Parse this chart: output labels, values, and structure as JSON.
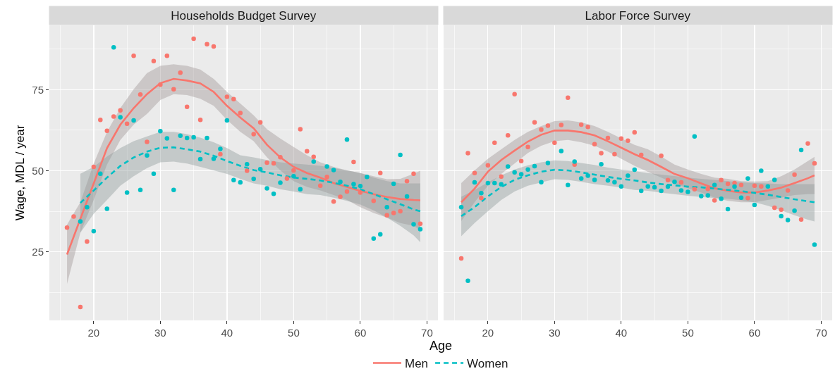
{
  "chart_data": [
    {
      "type": "scatter",
      "title": "Households Budget Survey",
      "xlabel": "Age",
      "ylabel": "Wage, MDL / year",
      "xlim": [
        13.35,
        71.65
      ],
      "ylim": [
        3.9,
        94.8
      ],
      "xticks": [
        20,
        30,
        40,
        50,
        60,
        70
      ],
      "yticks": [
        25,
        50,
        75
      ],
      "grid": true,
      "legend": "bottom",
      "series": [
        {
          "color": "#f8766d",
          "marker": "circle",
          "x": [
            16,
            17,
            18,
            19,
            20,
            21,
            22,
            23,
            24,
            25,
            26,
            27,
            28,
            29,
            30,
            31,
            32,
            33,
            34,
            35,
            36,
            37,
            38,
            39,
            40,
            41,
            42,
            43,
            44,
            45,
            46,
            47,
            48,
            49,
            50,
            51,
            52,
            53,
            54,
            55,
            56,
            57,
            58,
            59,
            60,
            62,
            63,
            64,
            65,
            66,
            67,
            68,
            69
          ],
          "values": [
            32.5,
            35.9,
            8.0,
            28.2,
            51.2,
            65.7,
            62.3,
            66.7,
            68.6,
            64.5,
            85.4,
            73.5,
            58.9,
            83.8,
            76.5,
            85.4,
            75.1,
            80.2,
            69.7,
            90.7,
            65.7,
            89.0,
            88.3,
            55.1,
            72.8,
            72.1,
            67.8,
            50.0,
            61.3,
            64.9,
            52.5,
            52.3,
            54.2,
            47.6,
            50.1,
            62.8,
            56.0,
            54.3,
            45.4,
            48.1,
            40.5,
            42.0,
            43.6,
            52.7,
            43.3,
            40.7,
            49.3,
            36.3,
            37.0,
            37.5,
            46.8,
            49.1,
            33.7
          ]
        },
        {
          "color": "#00bfc4",
          "marker": "circle",
          "x": [
            18,
            19,
            20,
            21,
            22,
            23,
            24,
            25,
            26,
            27,
            28,
            29,
            30,
            31,
            32,
            33,
            34,
            35,
            36,
            37,
            38,
            39,
            40,
            41,
            42,
            43,
            44,
            45,
            46,
            47,
            48,
            50,
            51,
            53,
            55,
            56,
            57,
            58,
            59,
            60,
            61,
            62,
            63,
            64,
            65,
            66,
            67,
            68,
            69
          ],
          "values": [
            34.4,
            38.8,
            31.4,
            49.1,
            38.3,
            88.0,
            66.5,
            43.3,
            65.5,
            44.1,
            54.7,
            49.1,
            62.2,
            60.0,
            44.1,
            60.8,
            60.1,
            60.3,
            53.6,
            60.1,
            53.7,
            56.7,
            65.5,
            47.1,
            46.4,
            52.0,
            47.5,
            50.5,
            44.6,
            42.9,
            46.3,
            48.3,
            44.3,
            52.8,
            51.3,
            50.2,
            46.6,
            59.6,
            45.9,
            45.3,
            48.1,
            29.1,
            30.4,
            38.8,
            46.0,
            54.9,
            42.1,
            33.5,
            32.0
          ]
        },
        {
          "type": "line",
          "name": "Men",
          "color": "#f8766d",
          "line_style": "solid",
          "marker": "none",
          "x": [
            16,
            18,
            20,
            22,
            24,
            26,
            28,
            30,
            32,
            34,
            36,
            38,
            40,
            42,
            44,
            46,
            48,
            50,
            52,
            54,
            56,
            58,
            60,
            62,
            64,
            66,
            68,
            69
          ],
          "values": [
            24.2,
            35.2,
            46.1,
            57.0,
            64.2,
            69.3,
            73.6,
            77.0,
            78.3,
            77.8,
            76.9,
            74.3,
            70.0,
            66.4,
            63.1,
            58.0,
            54.1,
            51.2,
            49.3,
            47.9,
            46.2,
            45.0,
            43.8,
            42.8,
            41.9,
            41.3,
            41.0,
            40.9
          ],
          "lower": [
            15.1,
            30.9,
            41.0,
            51.9,
            59.5,
            64.2,
            67.5,
            71.8,
            73.6,
            73.3,
            72.2,
            70.0,
            65.7,
            62.0,
            59.1,
            54.1,
            50.1,
            46.8,
            45.0,
            43.9,
            42.5,
            41.0,
            38.8,
            37.0,
            35.6,
            33.9,
            33.0,
            31.7
          ],
          "upper": [
            33.4,
            40.3,
            52.2,
            62.0,
            69.3,
            75.1,
            80.1,
            82.3,
            82.8,
            82.3,
            81.2,
            78.3,
            74.3,
            70.7,
            67.1,
            62.8,
            59.9,
            57.3,
            54.8,
            52.6,
            51.2,
            50.1,
            49.3,
            48.3,
            47.4,
            47.5,
            49.1,
            50.0
          ]
        },
        {
          "type": "line",
          "name": "Women",
          "color": "#00bfc4",
          "line_style": "dashed",
          "marker": "none",
          "x": [
            18,
            20,
            22,
            24,
            26,
            28,
            30,
            32,
            34,
            36,
            38,
            40,
            42,
            44,
            46,
            48,
            50,
            52,
            54,
            56,
            58,
            60,
            62,
            64,
            66,
            68,
            69
          ],
          "values": [
            40.1,
            43.9,
            47.9,
            51.5,
            54.1,
            55.9,
            57.1,
            57.2,
            56.6,
            55.9,
            54.6,
            53.0,
            51.5,
            50.2,
            49.5,
            48.6,
            47.9,
            47.5,
            47.0,
            46.3,
            45.4,
            44.3,
            42.8,
            41.2,
            39.7,
            38.1,
            37.5
          ],
          "lower": [
            30.9,
            36.7,
            41.0,
            45.4,
            48.3,
            50.8,
            52.6,
            52.8,
            52.2,
            51.2,
            50.1,
            49.0,
            47.5,
            46.1,
            45.4,
            44.3,
            43.6,
            42.8,
            42.5,
            41.7,
            40.7,
            39.6,
            37.8,
            35.6,
            33.0,
            30.1,
            28.0
          ],
          "upper": [
            49.1,
            51.2,
            54.4,
            57.0,
            59.1,
            60.6,
            62.0,
            62.0,
            61.3,
            60.2,
            58.8,
            57.0,
            54.8,
            54.1,
            53.3,
            52.6,
            52.2,
            51.9,
            51.5,
            50.8,
            50.1,
            49.3,
            47.9,
            46.8,
            46.1,
            46.1,
            46.1
          ]
        }
      ]
    },
    {
      "type": "scatter",
      "title": "Labor Force Survey",
      "xlim": [
        13.35,
        71.65
      ],
      "ylim": [
        3.9,
        94.8
      ],
      "xticks": [
        20,
        30,
        40,
        50,
        60,
        70
      ],
      "yticks": [
        25,
        50,
        75
      ],
      "grid": true,
      "tick_labels": "x",
      "series": [
        {
          "color": "#f8766d",
          "marker": "circle",
          "x": [
            16,
            17,
            18,
            19,
            20,
            21,
            22,
            23,
            24,
            25,
            26,
            27,
            28,
            29,
            30,
            31,
            32,
            33,
            34,
            35,
            36,
            37,
            38,
            39,
            40,
            41,
            42,
            43,
            46,
            47,
            49,
            51,
            53,
            54,
            55,
            56,
            57,
            58,
            59,
            60,
            61,
            63,
            64,
            65,
            66,
            67,
            68,
            69
          ],
          "values": [
            23.0,
            55.4,
            49.3,
            41.6,
            51.7,
            58.6,
            48.2,
            60.9,
            73.6,
            53.0,
            57.3,
            64.9,
            62.7,
            63.9,
            58.6,
            64.1,
            72.5,
            51.9,
            64.2,
            63.5,
            58.2,
            55.4,
            60.1,
            55.1,
            59.9,
            59.3,
            61.8,
            54.9,
            54.6,
            47.1,
            46.4,
            44.3,
            44.4,
            40.9,
            47.1,
            46.0,
            46.2,
            45.6,
            41.6,
            45.4,
            45.2,
            38.6,
            38.0,
            43.9,
            48.8,
            35.0,
            58.4,
            52.3
          ]
        },
        {
          "color": "#00bfc4",
          "marker": "circle",
          "x": [
            16,
            17,
            18,
            19,
            20,
            21,
            22,
            23,
            24,
            25,
            26,
            27,
            28,
            29,
            31,
            32,
            33,
            34,
            35,
            36,
            37,
            38,
            39,
            40,
            41,
            42,
            43,
            44,
            45,
            46,
            47,
            48,
            49,
            50,
            51,
            52,
            53,
            54,
            55,
            56,
            57,
            58,
            59,
            60,
            61,
            62,
            63,
            64,
            65,
            66,
            67,
            69
          ],
          "values": [
            38.8,
            16.1,
            46.4,
            43.1,
            46.2,
            46.2,
            45.8,
            51.3,
            49.5,
            48.9,
            50.4,
            51.4,
            46.5,
            52.4,
            56.1,
            45.6,
            52.8,
            47.6,
            48.5,
            47.2,
            52.0,
            47.0,
            46.5,
            45.2,
            48.5,
            50.3,
            43.8,
            45.2,
            44.9,
            43.8,
            45.1,
            46.6,
            43.9,
            43.5,
            60.6,
            42.2,
            42.4,
            45.6,
            41.4,
            38.2,
            45.1,
            41.7,
            47.6,
            39.5,
            50.0,
            45.2,
            47.2,
            36.0,
            34.8,
            37.7,
            56.4,
            27.2
          ]
        },
        {
          "type": "line",
          "color": "#f8766d",
          "line_style": "solid",
          "marker": "none",
          "x": [
            16,
            18,
            20,
            22,
            24,
            26,
            28,
            30,
            32,
            34,
            36,
            38,
            40,
            42,
            44,
            46,
            48,
            50,
            52,
            54,
            56,
            58,
            60,
            62,
            64,
            66,
            68,
            69
          ],
          "values": [
            40.3,
            44.5,
            49.7,
            53.3,
            56.2,
            59.0,
            61.1,
            62.4,
            62.4,
            61.9,
            60.9,
            59.1,
            57.1,
            55.1,
            53.3,
            51.2,
            49.0,
            47.7,
            46.1,
            44.6,
            43.8,
            43.3,
            43.3,
            43.9,
            44.8,
            46.2,
            47.7,
            48.6
          ],
          "lower": [
            34.5,
            40.3,
            45.4,
            49.0,
            52.2,
            55.5,
            57.7,
            59.1,
            59.5,
            58.8,
            57.7,
            55.9,
            53.7,
            51.5,
            49.7,
            47.9,
            46.1,
            44.6,
            43.3,
            41.7,
            40.7,
            40.3,
            40.3,
            41.0,
            41.7,
            42.5,
            42.8,
            42.8
          ],
          "upper": [
            46.2,
            50.1,
            53.7,
            56.6,
            59.5,
            62.0,
            63.8,
            65.3,
            65.5,
            64.9,
            63.8,
            62.0,
            60.0,
            58.0,
            56.6,
            54.4,
            51.9,
            50.4,
            49.0,
            47.9,
            47.5,
            46.8,
            46.7,
            46.8,
            48.3,
            50.4,
            53.0,
            54.3
          ]
        },
        {
          "type": "line",
          "color": "#00bfc4",
          "line_style": "dashed",
          "marker": "none",
          "x": [
            16,
            18,
            20,
            22,
            24,
            26,
            28,
            30,
            32,
            34,
            36,
            38,
            40,
            42,
            44,
            46,
            48,
            50,
            52,
            54,
            56,
            58,
            60,
            62,
            64,
            66,
            68,
            69
          ],
          "values": [
            36.0,
            38.8,
            42.1,
            45.0,
            47.2,
            48.6,
            49.7,
            50.3,
            50.1,
            49.5,
            48.8,
            48.1,
            47.5,
            47.0,
            46.4,
            45.9,
            45.5,
            45.1,
            44.9,
            44.5,
            44.1,
            43.7,
            43.2,
            42.6,
            41.9,
            41.2,
            40.6,
            40.3
          ],
          "lower": [
            29.8,
            33.9,
            37.5,
            41.0,
            43.6,
            45.4,
            46.4,
            47.4,
            47.2,
            46.6,
            45.9,
            45.4,
            44.8,
            44.1,
            43.8,
            43.2,
            42.8,
            42.3,
            41.9,
            41.6,
            41.4,
            40.9,
            40.3,
            39.2,
            37.8,
            36.3,
            34.9,
            34.4
          ],
          "upper": [
            42.0,
            44.1,
            46.4,
            48.6,
            50.4,
            51.7,
            52.6,
            53.2,
            53.0,
            52.4,
            51.8,
            51.0,
            50.4,
            49.9,
            49.3,
            48.8,
            48.4,
            47.9,
            47.5,
            47.2,
            46.8,
            46.4,
            46.2,
            46.1,
            45.9,
            45.9,
            45.9,
            45.9
          ]
        }
      ]
    }
  ]
}
